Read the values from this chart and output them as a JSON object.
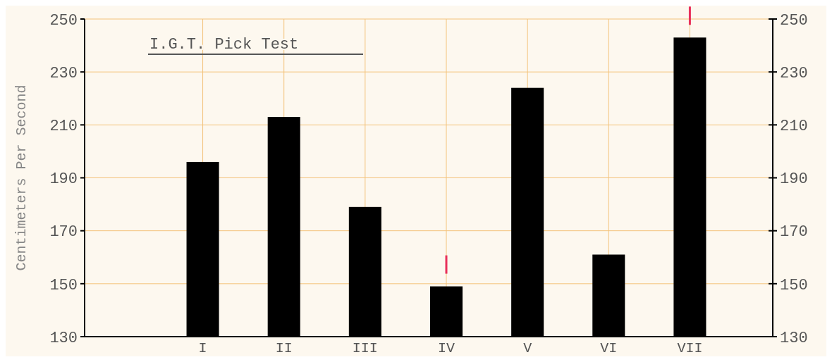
{
  "chart_data": {
    "type": "bar",
    "title": "I.G.T. Pick Test",
    "ylabel": "Centimeters Per Second",
    "categories": [
      "I",
      "II",
      "III",
      "IV",
      "V",
      "VI",
      "VII"
    ],
    "series": [
      {
        "color": "#000000",
        "values": [
          196,
          213,
          179,
          149,
          224,
          161,
          243
        ]
      }
    ],
    "ylim": [
      130,
      250
    ],
    "yticks": [
      130,
      150,
      170,
      190,
      210,
      230,
      250
    ],
    "y2lim": [
      130,
      250
    ],
    "y2ticks": [
      130,
      150,
      170,
      190,
      210,
      230,
      250
    ],
    "grid": true
  }
}
